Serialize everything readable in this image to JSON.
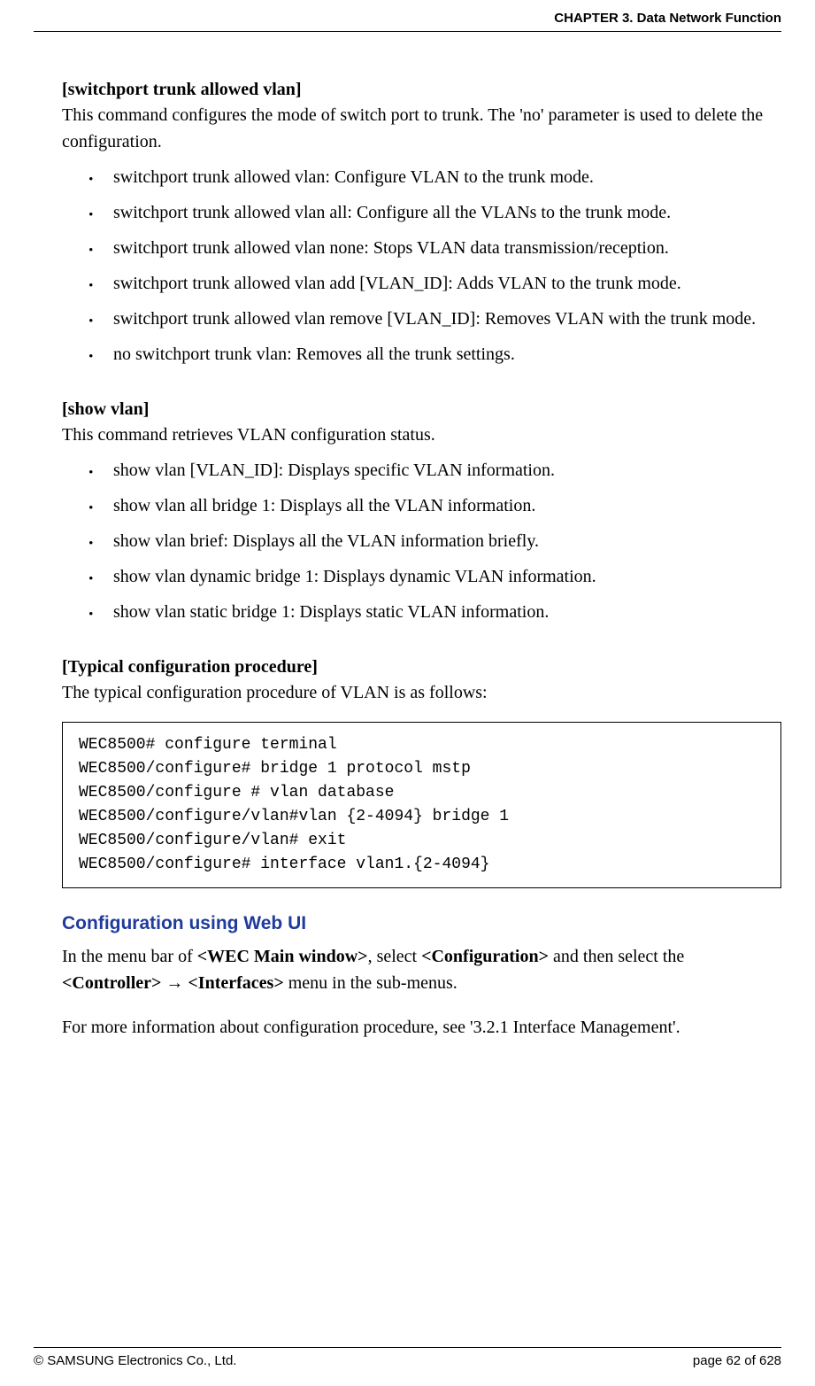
{
  "header": {
    "chapter": "CHAPTER 3. Data Network Function"
  },
  "sections": {
    "trunk": {
      "title": "[switchport trunk allowed vlan]",
      "desc": "This command configures the mode of switch port to trunk. The 'no' parameter is used to delete the configuration.",
      "items": [
        "switchport trunk allowed vlan: Configure VLAN to the trunk mode.",
        "switchport trunk allowed vlan all: Configure all the VLANs to the trunk mode.",
        "switchport trunk allowed vlan none: Stops VLAN data transmission/reception.",
        "switchport trunk allowed vlan add [VLAN_ID]: Adds VLAN to the trunk mode.",
        "switchport trunk allowed vlan remove [VLAN_ID]: Removes VLAN with the trunk mode.",
        "no switchport trunk vlan: Removes all the trunk settings."
      ]
    },
    "showvlan": {
      "title": "[show vlan]",
      "desc": "This command retrieves VLAN configuration status.",
      "items": [
        "show vlan [VLAN_ID]: Displays specific VLAN information.",
        "show vlan all bridge 1: Displays all the VLAN information.",
        "show vlan brief: Displays all the VLAN information briefly.",
        "show vlan dynamic bridge 1: Displays dynamic VLAN information.",
        "show vlan static bridge 1: Displays static VLAN information."
      ]
    },
    "typical": {
      "title": "[Typical configuration procedure]",
      "desc": "The typical configuration procedure of VLAN is as follows:",
      "code": "WEC8500# configure terminal\nWEC8500/configure# bridge 1 protocol mstp\nWEC8500/configure # vlan database\nWEC8500/configure/vlan#vlan {2-4094} bridge 1\nWEC8500/configure/vlan# exit\nWEC8500/configure# interface vlan1.{2-4094}"
    },
    "webui": {
      "heading": "Configuration using Web UI",
      "p1_a": "In the menu bar of ",
      "p1_b": "<WEC Main window>",
      "p1_c": ", select ",
      "p1_d": "<Configuration>",
      "p1_e": " and then select the ",
      "p1_f": "<Controller>",
      "p1_g": " → ",
      "p1_h": "<Interfaces>",
      "p1_i": " menu in the sub-menus.",
      "p2": "For more information about configuration procedure, see '3.2.1 Interface Management'."
    }
  },
  "footer": {
    "copyright": "© SAMSUNG Electronics Co., Ltd.",
    "pageinfo": "page 62 of 628"
  },
  "colors": {
    "heading_blue": "#1f3b9b",
    "text": "#000000",
    "border": "#000000",
    "background": "#ffffff"
  }
}
